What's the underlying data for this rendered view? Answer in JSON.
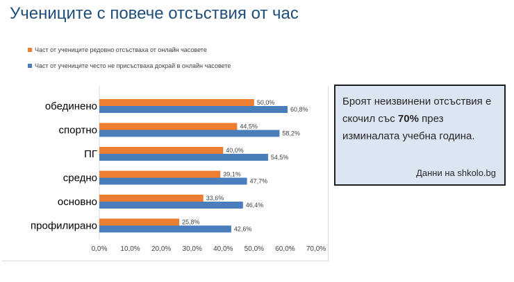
{
  "slide": {
    "title": "Учениците с повече отсъствия от час"
  },
  "info_box": {
    "text_before": "Броят неизвинени отсъствия е скочил със ",
    "highlight": "70%",
    "text_after": " през изминалата учебна година.",
    "source": "Данни на shkolo.bg",
    "bg_color": "#dce6f2"
  },
  "chart_data": {
    "type": "bar",
    "orientation": "horizontal",
    "title": "",
    "xlabel": "",
    "ylabel": "",
    "xlim": [
      0,
      70
    ],
    "x_ticks": [
      "0,0%",
      "10,0%",
      "20,0%",
      "30,0%",
      "40,0%",
      "50,0%",
      "60,0%",
      "70,0%"
    ],
    "grid": false,
    "legend_position": "top-left",
    "categories": [
      "обединено",
      "спортно",
      "ПГ",
      "средно",
      "основно",
      "профилирано"
    ],
    "series": [
      {
        "name": "Част от учениците редовно отсъстваха от онлайн часовете",
        "color": "#ed7d31",
        "values": [
          50.0,
          44.5,
          40.0,
          39.1,
          33.6,
          25.8
        ],
        "labels": [
          "50,0%",
          "44,5%",
          "40,0%",
          "39,1%",
          "33,6%",
          "25,8%"
        ]
      },
      {
        "name": "Част от учениците често не присъстваха докрай в онлайн часовете",
        "color": "#4a7ebb",
        "values": [
          60.8,
          58.2,
          54.5,
          47.7,
          46.4,
          42.6
        ],
        "labels": [
          "60,8%",
          "58,2%",
          "54,5%",
          "47,7%",
          "46,4%",
          "42,6%"
        ]
      }
    ]
  }
}
